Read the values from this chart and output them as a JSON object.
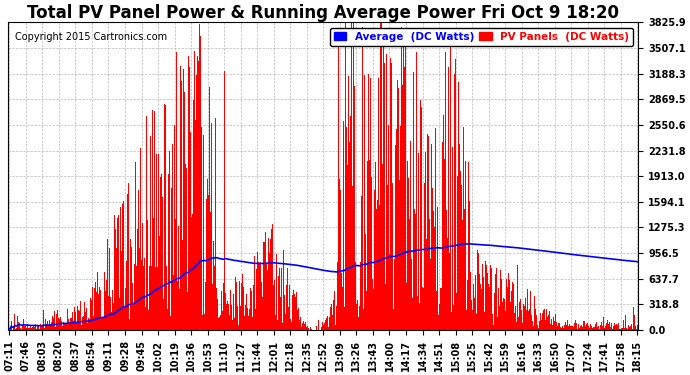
{
  "title": "Total PV Panel Power & Running Average Power Fri Oct 9 18:20",
  "copyright": "Copyright 2015 Cartronics.com",
  "legend_avg": "Average  (DC Watts)",
  "legend_pv": "PV Panels  (DC Watts)",
  "ylabel_values": [
    0.0,
    318.8,
    637.7,
    956.5,
    1275.3,
    1594.1,
    1913.0,
    2231.8,
    2550.6,
    2869.5,
    3188.3,
    3507.1,
    3825.9
  ],
  "ylim": [
    0.0,
    3825.9
  ],
  "background_color": "#ffffff",
  "plot_bg_color": "#ffffff",
  "grid_color": "#aaaaaa",
  "bar_color": "#ff0000",
  "avg_color": "#0000ff",
  "x_tick_labels": [
    "07:11",
    "07:46",
    "08:03",
    "08:20",
    "08:37",
    "08:54",
    "09:11",
    "09:28",
    "09:45",
    "10:02",
    "10:19",
    "10:36",
    "10:53",
    "11:10",
    "11:27",
    "11:44",
    "12:01",
    "12:18",
    "12:35",
    "12:52",
    "13:09",
    "13:26",
    "13:43",
    "14:00",
    "14:17",
    "14:34",
    "14:51",
    "15:08",
    "15:25",
    "15:42",
    "15:59",
    "16:16",
    "16:33",
    "16:50",
    "17:07",
    "17:24",
    "17:41",
    "17:58",
    "18:15"
  ],
  "title_fontsize": 12,
  "tick_fontsize": 7,
  "copyright_fontsize": 7,
  "legend_fontsize": 7.5
}
